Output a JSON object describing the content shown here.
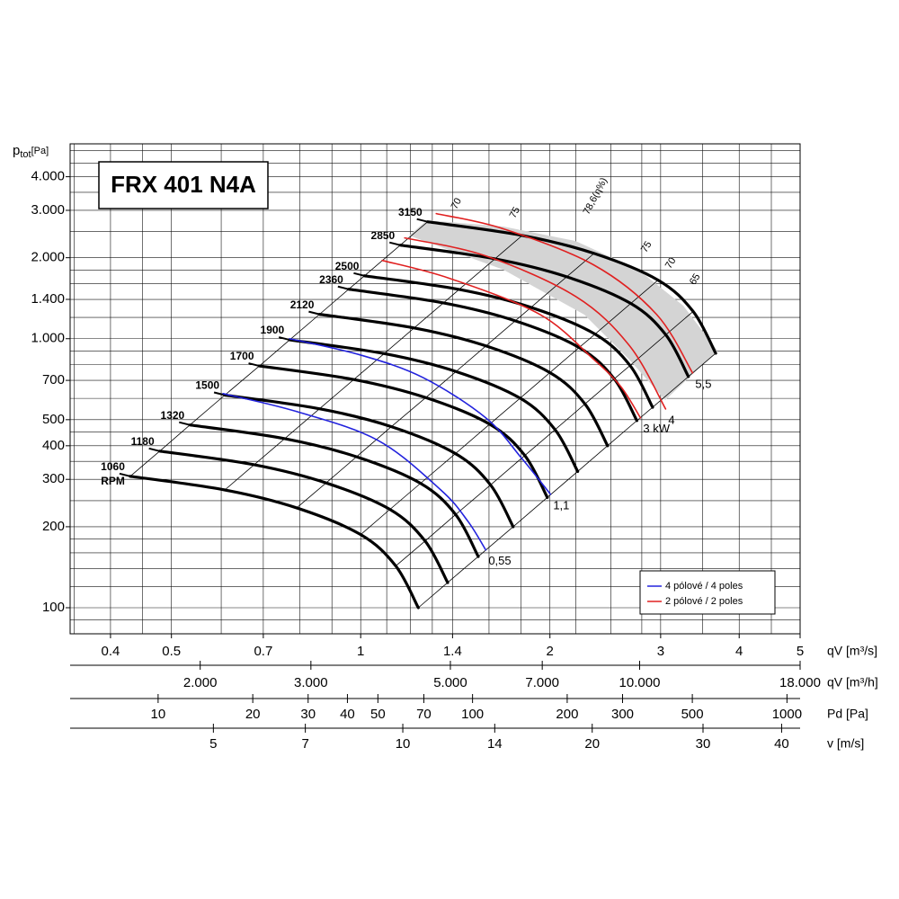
{
  "chart_data": {
    "type": "line",
    "title": "FRX 401 N4A",
    "y_label_symbol": "p",
    "y_label_sub": "tot",
    "y_label_unit": "[Pa]",
    "x_label": "qV [m³/s]",
    "log_x": true,
    "log_y": true,
    "grid": true,
    "xlim": [
      0.345,
      5
    ],
    "ylim": [
      80,
      5300
    ],
    "xticks": [
      0.4,
      0.5,
      0.7,
      1,
      1.4,
      2,
      3,
      4,
      5
    ],
    "yticks": [
      {
        "value": 4000,
        "label": "4.000"
      },
      {
        "value": 3000,
        "label": "3.000"
      },
      {
        "value": 2000,
        "label": "2.000"
      },
      {
        "value": 1400,
        "label": "1.400"
      },
      {
        "value": 1000,
        "label": "1.000"
      },
      700,
      500,
      400,
      300,
      200,
      100
    ],
    "xgrid": [
      0.35,
      0.4,
      0.45,
      0.5,
      0.6,
      0.7,
      0.8,
      0.9,
      1,
      1.1,
      1.2,
      1.3,
      1.4,
      1.6,
      1.8,
      2,
      2.2,
      2.5,
      2.8,
      3,
      3.5,
      4,
      4.5,
      5
    ],
    "ygrid": [
      90,
      100,
      120,
      140,
      160,
      180,
      200,
      250,
      300,
      350,
      400,
      450,
      500,
      600,
      700,
      800,
      900,
      1000,
      1200,
      1400,
      1600,
      1800,
      2000,
      2500,
      3000,
      3500,
      4000,
      4500,
      5000
    ],
    "secondary_axes": [
      {
        "label": "qV [m³/h]",
        "xlim": [
          1242,
          18000
        ],
        "xticks": [
          {
            "value": 2000,
            "label": "2.000"
          },
          {
            "value": 3000,
            "label": "3.000"
          },
          {
            "value": 5000,
            "label": "5.000"
          },
          {
            "value": 7000,
            "label": "7.000"
          },
          {
            "value": 10000,
            "label": "10.000"
          },
          {
            "value": 18000,
            "label": "18.000"
          }
        ]
      },
      {
        "label": "Pd [Pa]",
        "xlim": [
          5.25,
          1101
        ],
        "xticks": [
          10,
          20,
          30,
          40,
          50,
          70,
          100,
          200,
          300,
          500,
          1000
        ]
      },
      {
        "label": "v [m/s]",
        "xlim": [
          2.96,
          42.8
        ],
        "xticks": [
          5,
          7,
          10,
          14,
          20,
          30,
          40
        ]
      }
    ],
    "rpm_unit": "RPM",
    "series": [
      {
        "name": "1060",
        "color": "#000000",
        "x": [
          0.43,
          0.608,
          0.791,
          1.0,
          1.137,
          1.235
        ],
        "values": [
          308,
          274,
          235,
          187,
          143,
          100
        ]
      },
      {
        "name": "1180",
        "color": "#000000",
        "x": [
          0.479,
          0.677,
          0.881,
          1.113,
          1.266,
          1.375
        ],
        "values": [
          382,
          340,
          291,
          232,
          177,
          124
        ]
      },
      {
        "name": "1320",
        "color": "#000000",
        "x": [
          0.535,
          0.757,
          0.985,
          1.245,
          1.416,
          1.538
        ],
        "values": [
          478,
          425,
          364,
          290,
          222,
          155
        ]
      },
      {
        "name": "1500",
        "color": "#000000",
        "x": [
          0.608,
          0.86,
          1.119,
          1.415,
          1.609,
          1.748
        ],
        "values": [
          617,
          549,
          471,
          374,
          286,
          200
        ]
      },
      {
        "name": "1700",
        "color": "#000000",
        "x": [
          0.69,
          0.975,
          1.269,
          1.604,
          1.824,
          1.981
        ],
        "values": [
          792,
          705,
          604,
          481,
          368,
          257
        ]
      },
      {
        "name": "1900",
        "color": "#000000",
        "x": [
          0.771,
          1.09,
          1.418,
          1.793,
          2.038,
          2.214
        ],
        "values": [
          990,
          880,
          755,
          601,
          459,
          321
        ]
      },
      {
        "name": "2120",
        "color": "#000000",
        "x": [
          0.86,
          1.216,
          1.582,
          2.0,
          2.274,
          2.47
        ],
        "values": [
          1232,
          1096,
          940,
          748,
          572,
          400
        ]
      },
      {
        "name": "2360",
        "color": "#000000",
        "x": [
          0.957,
          1.354,
          1.761,
          2.226,
          2.531,
          2.75
        ],
        "values": [
          1527,
          1358,
          1165,
          927,
          709,
          496
        ]
      },
      {
        "name": "2500",
        "color": "#000000",
        "x": [
          1.014,
          1.434,
          1.866,
          2.359,
          2.682,
          2.913
        ],
        "values": [
          1713,
          1524,
          1307,
          1040,
          795,
          556
        ]
      },
      {
        "name": "2850",
        "color": "#000000",
        "x": [
          1.156,
          1.635,
          2.127,
          2.689,
          3.057,
          3.321
        ],
        "values": [
          2227,
          1981,
          1699,
          1352,
          1034,
          723
        ]
      },
      {
        "name": "3150",
        "color": "#000000",
        "x": [
          1.278,
          1.807,
          2.351,
          2.972,
          3.379,
          3.67
        ],
        "values": [
          2720,
          2420,
          2075,
          1651,
          1263,
          883
        ]
      }
    ],
    "power_curves": [
      {
        "name": "0,55",
        "color": "#2222dd",
        "x": [
          0.604,
          0.791,
          1.065,
          1.341,
          1.48,
          1.581
        ],
        "values": [
          625,
          536,
          419,
          274,
          210,
          164
        ]
      },
      {
        "name": "1,1",
        "color": "#2222dd",
        "x": [
          0.771,
          0.997,
          1.255,
          1.581,
          1.804,
          2.004
        ],
        "values": [
          1000,
          871,
          718,
          508,
          359,
          264
        ]
      },
      {
        "name": "3 kW",
        "color": "#e02020",
        "x": [
          1.082,
          1.386,
          1.927,
          2.347,
          2.591,
          2.786
        ],
        "values": [
          1954,
          1675,
          1231,
          838,
          665,
          508
        ]
      },
      {
        "name": "4",
        "color": "#e02020",
        "x": [
          1.175,
          1.581,
          2.197,
          2.678,
          3.055
        ],
        "values": [
          2369,
          2031,
          1436,
          940,
          548
        ]
      },
      {
        "name": "5,5",
        "color": "#e02020",
        "x": [
          1.319,
          1.688,
          2.347,
          2.956,
          3.372
        ],
        "values": [
          2917,
          2559,
          1881,
          1231,
          746
        ]
      }
    ],
    "efficiency_labels": [
      "70",
      "75",
      "78,6(η%)",
      "75",
      "70",
      "65"
    ],
    "legend": [
      {
        "name": "4 pólové / 4 poles",
        "color": "#2222dd"
      },
      {
        "name": "2 pólové / 2 poles",
        "color": "#e02020"
      }
    ]
  }
}
